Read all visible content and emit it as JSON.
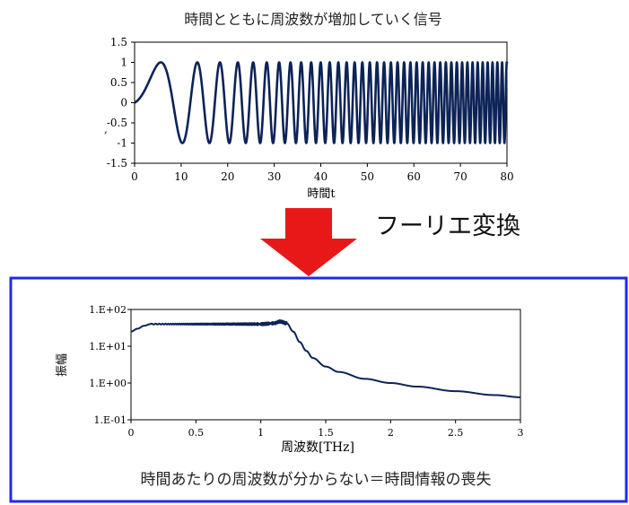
{
  "top_chart": {
    "title": "時間とともに周波数が増加していく信号",
    "xlabel": "時間t",
    "ylabel": ","
  },
  "transform_label": "フーリエ変換",
  "bottom_chart": {
    "ylabel": "振幅",
    "xlabel": "周波数[THz]"
  },
  "caption": "時間あたりの周波数が分からない＝時間情報の喪失",
  "colors": {
    "trace": "#0d2357",
    "arrow": "#e81818",
    "frame": "#1f2be8"
  },
  "chart_data": [
    {
      "type": "line",
      "title": "時間とともに周波数が増加していく信号",
      "xlabel": "時間t",
      "ylabel": "",
      "xlim": [
        0,
        80
      ],
      "ylim": [
        -1.5,
        1.5
      ],
      "x_ticks": [
        0,
        10,
        20,
        30,
        40,
        50,
        60,
        70,
        80
      ],
      "x_tick_labels": [
        "0",
        "10",
        "20",
        "30",
        "40",
        "50",
        "60",
        "70",
        "80"
      ],
      "y_ticks": [
        1.5,
        1,
        0.5,
        0,
        -0.5,
        -1,
        -1.5
      ],
      "y_tick_labels": [
        "1.5",
        "1",
        "0.5",
        "0",
        "-0.5",
        "-1",
        "-1.5"
      ],
      "signal": "chirp",
      "amplitude": 1,
      "grid": false
    },
    {
      "type": "line",
      "xlabel": "周波数[THz]",
      "ylabel": "振幅",
      "scale_y": "log",
      "xlim": [
        0,
        3
      ],
      "ylim": [
        0.1,
        100
      ],
      "x_ticks": [
        0,
        0.5,
        1,
        1.5,
        2,
        2.5,
        3
      ],
      "x_tick_labels": [
        "0",
        "0.5",
        "1",
        "1.5",
        "2",
        "2.5",
        "3"
      ],
      "y_ticks": [
        100,
        10,
        1,
        0.1
      ],
      "y_tick_labels": [
        "1.E+02",
        "1.E+01",
        "1.E+00",
        "1.E-01"
      ],
      "x": [
        0,
        0.05,
        0.1,
        0.15,
        0.2,
        0.3,
        0.4,
        0.5,
        0.6,
        0.7,
        0.8,
        0.9,
        1.0,
        1.1,
        1.15,
        1.2,
        1.25,
        1.3,
        1.35,
        1.4,
        1.5,
        1.6,
        1.8,
        2.0,
        2.2,
        2.5,
        2.8,
        3.0
      ],
      "y": [
        25,
        30,
        36,
        40,
        40,
        40,
        40,
        40,
        40,
        40,
        40,
        40,
        40,
        42,
        47,
        42,
        25,
        13,
        7.5,
        4.8,
        2.8,
        2.0,
        1.3,
        1.0,
        0.8,
        0.6,
        0.47,
        0.41
      ],
      "ripple_range": [
        0.15,
        1.2
      ],
      "grid": false
    }
  ]
}
